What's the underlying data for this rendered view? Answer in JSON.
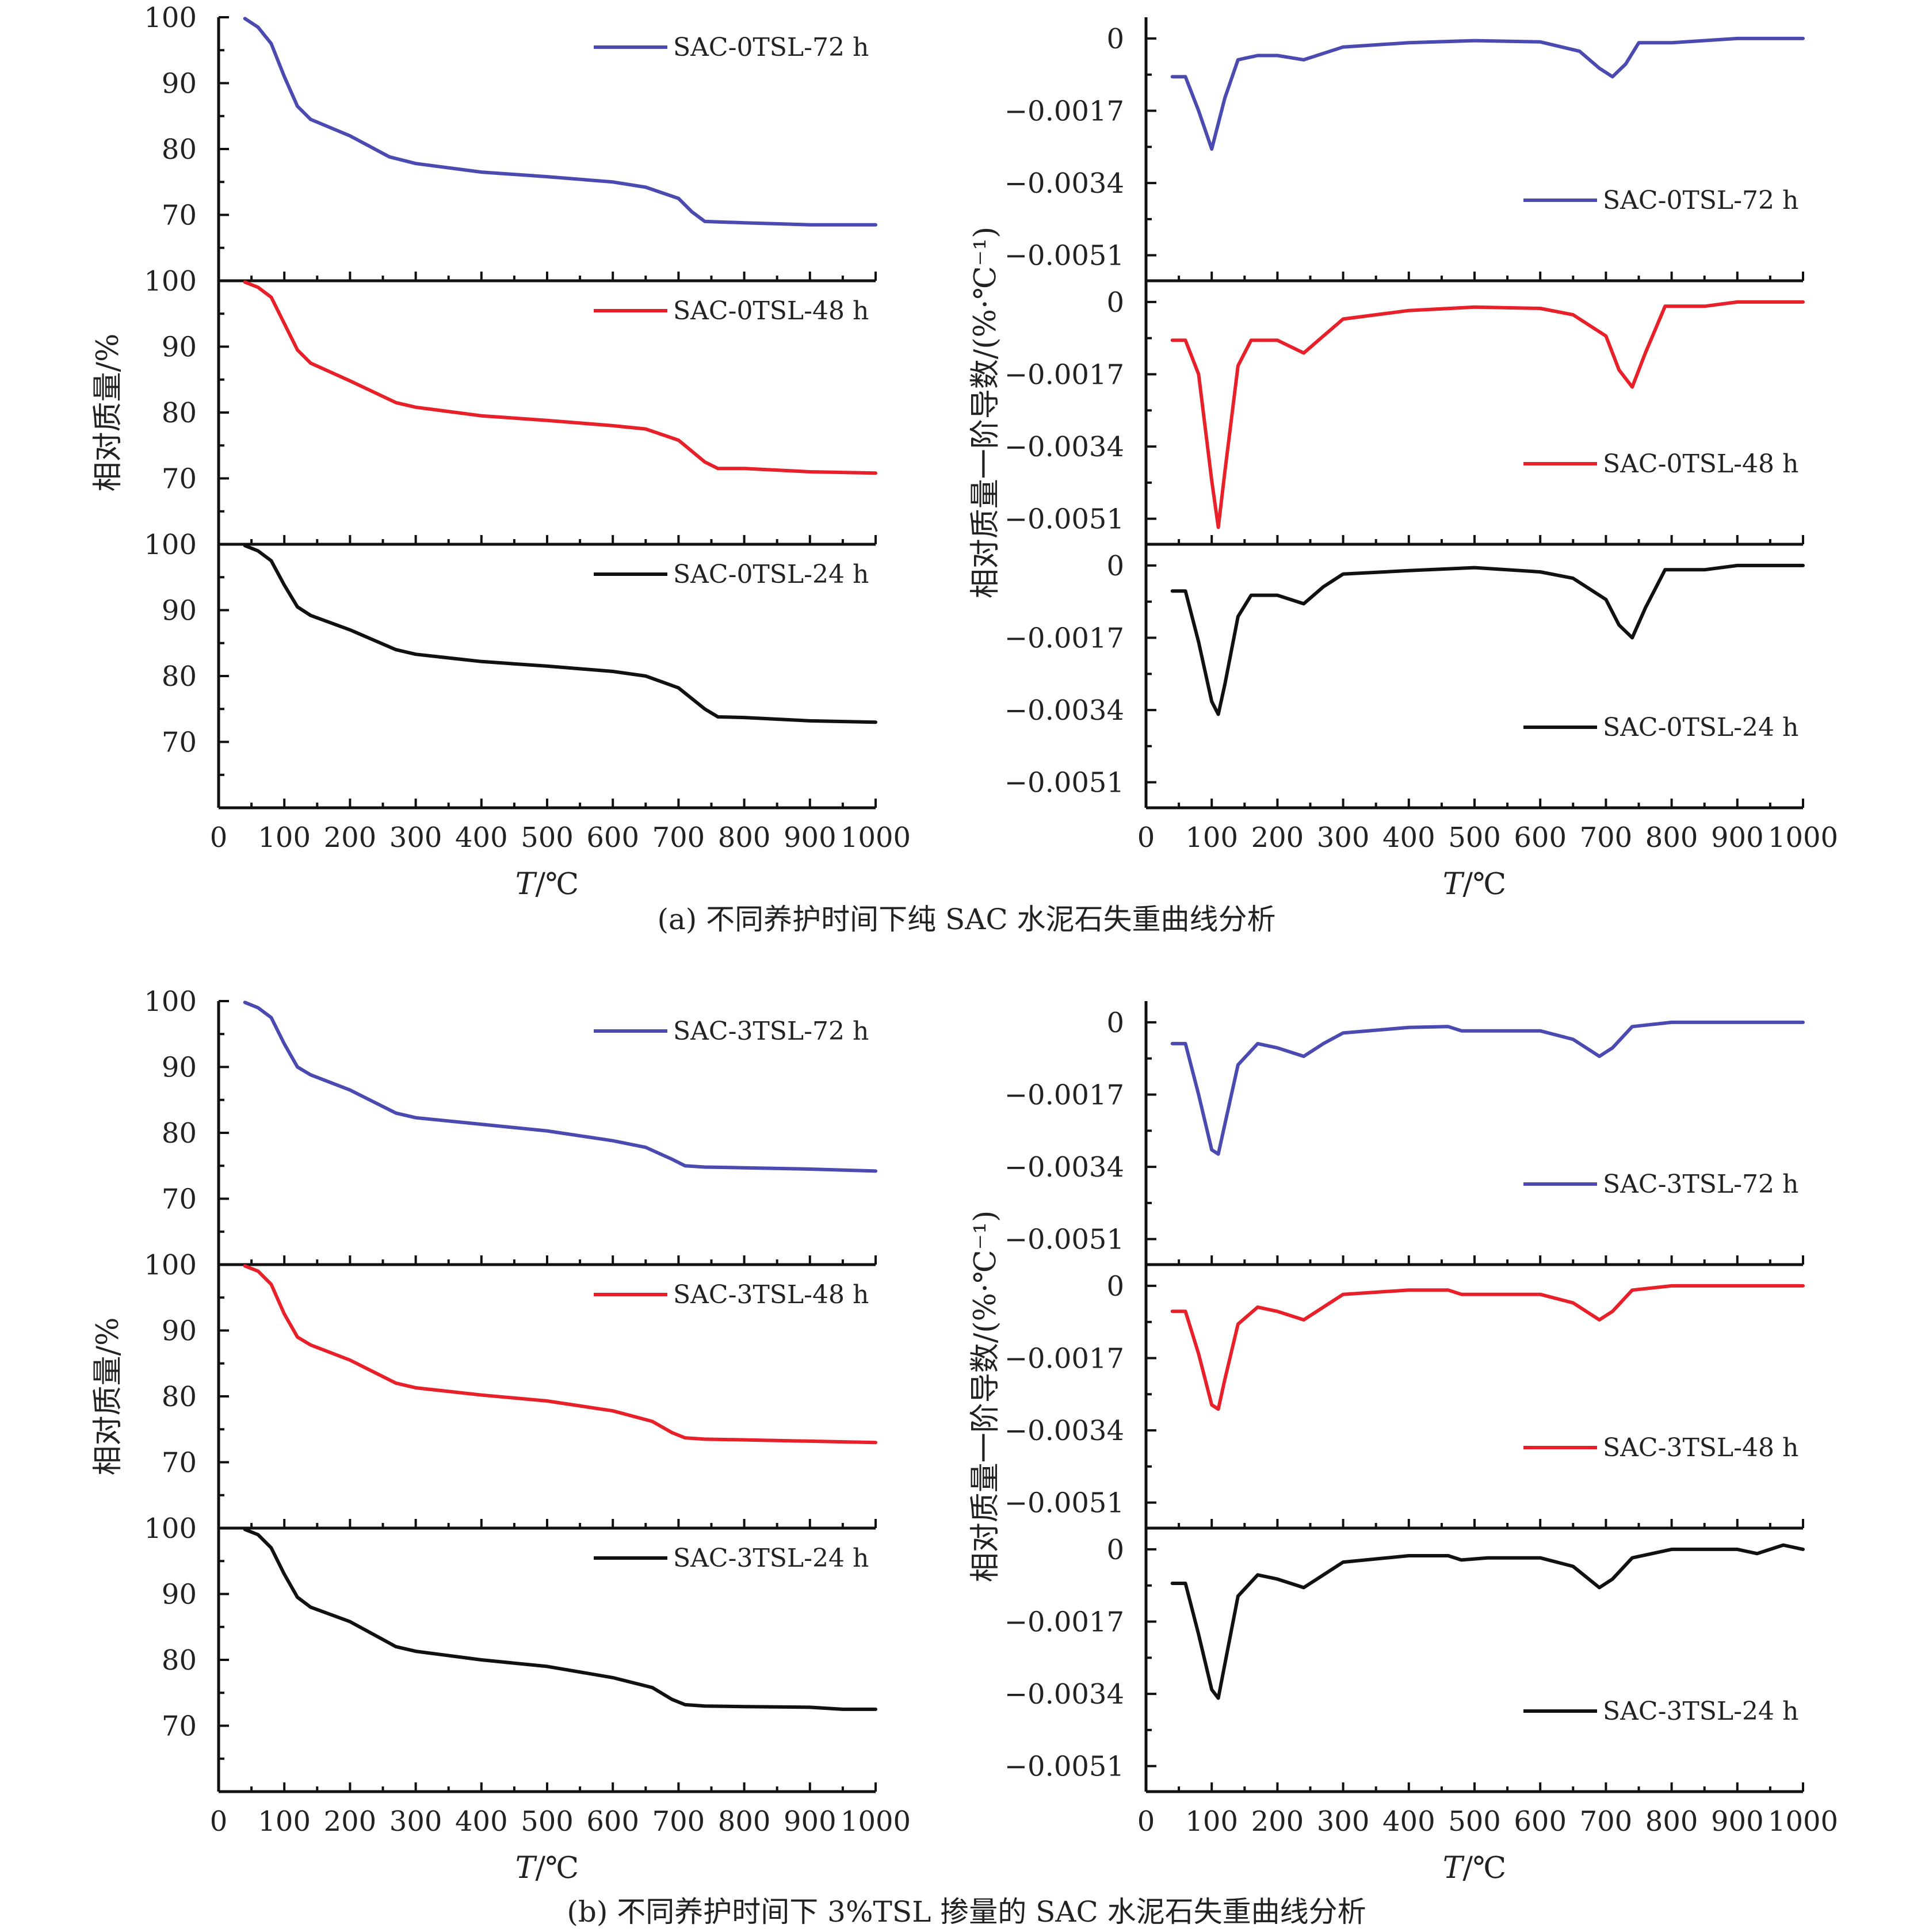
{
  "colors": {
    "blue": "#4a4ab0",
    "red": "#e8202a",
    "black": "#111111"
  },
  "figures": [
    {
      "caption": "(a) 不同养护时间下纯 SAC 水泥石失重曲线分析",
      "tga": {
        "ylabel": "相对质量/%",
        "xlabel_italic": "T",
        "xlabel_rest": "/℃",
        "panels": [
          {
            "legend": "SAC-0TSL-72 h",
            "color": "blue"
          },
          {
            "legend": "SAC-0TSL-48 h",
            "color": "red"
          },
          {
            "legend": "SAC-0TSL-24 h",
            "color": "black"
          }
        ]
      },
      "dtg": {
        "ylabel": "相对质量一阶导数/(%·℃⁻¹)",
        "xlabel_italic": "T",
        "xlabel_rest": "/℃",
        "panels": [
          {
            "legend": "SAC-0TSL-72 h",
            "color": "blue"
          },
          {
            "legend": "SAC-0TSL-48 h",
            "color": "red"
          },
          {
            "legend": "SAC-0TSL-24 h",
            "color": "black"
          }
        ]
      }
    },
    {
      "caption": "(b) 不同养护时间下 3%TSL 掺量的 SAC 水泥石失重曲线分析",
      "tga": {
        "ylabel": "相对质量/%",
        "xlabel_italic": "T",
        "xlabel_rest": "/℃",
        "panels": [
          {
            "legend": "SAC-3TSL-72 h",
            "color": "blue"
          },
          {
            "legend": "SAC-3TSL-48 h",
            "color": "red"
          },
          {
            "legend": "SAC-3TSL-24 h",
            "color": "black"
          }
        ]
      },
      "dtg": {
        "ylabel": "相对质量一阶导数/(%·℃⁻¹)",
        "xlabel_italic": "T",
        "xlabel_rest": "/℃",
        "panels": [
          {
            "legend": "SAC-3TSL-72 h",
            "color": "blue"
          },
          {
            "legend": "SAC-3TSL-48 h",
            "color": "red"
          },
          {
            "legend": "SAC-3TSL-24 h",
            "color": "black"
          }
        ]
      }
    }
  ],
  "chart_data": [
    {
      "type": "line",
      "figure": "a",
      "side": "TGA",
      "xlim": [
        0,
        1000
      ],
      "ylim": [
        60,
        100
      ],
      "xticks": [
        0,
        100,
        200,
        300,
        400,
        500,
        600,
        700,
        800,
        900,
        1000
      ],
      "yticks": [
        70,
        80,
        90,
        100
      ],
      "series": [
        {
          "name": "SAC-0TSL-72 h",
          "color": "blue",
          "x": [
            40,
            60,
            80,
            100,
            120,
            140,
            200,
            260,
            300,
            400,
            500,
            600,
            650,
            700,
            720,
            740,
            800,
            900,
            1000
          ],
          "y": [
            99.8,
            98.5,
            96.0,
            91.0,
            86.5,
            84.5,
            82.0,
            78.8,
            77.8,
            76.5,
            75.8,
            75.0,
            74.2,
            72.5,
            70.5,
            69.0,
            68.8,
            68.5,
            68.5
          ]
        },
        {
          "name": "SAC-0TSL-48 h",
          "color": "red",
          "x": [
            40,
            60,
            80,
            100,
            120,
            140,
            200,
            270,
            300,
            400,
            500,
            600,
            650,
            700,
            740,
            760,
            800,
            900,
            1000
          ],
          "y": [
            99.8,
            99.0,
            97.5,
            93.5,
            89.5,
            87.5,
            84.8,
            81.5,
            80.8,
            79.5,
            78.8,
            78.0,
            77.5,
            75.8,
            72.5,
            71.5,
            71.5,
            71.0,
            70.8
          ]
        },
        {
          "name": "SAC-0TSL-24 h",
          "color": "black",
          "x": [
            40,
            60,
            80,
            100,
            120,
            140,
            200,
            270,
            300,
            400,
            500,
            600,
            650,
            700,
            740,
            760,
            800,
            900,
            1000
          ],
          "y": [
            99.8,
            99.0,
            97.5,
            93.8,
            90.5,
            89.2,
            87.0,
            84.0,
            83.3,
            82.2,
            81.5,
            80.7,
            80.0,
            78.2,
            75.0,
            73.8,
            73.7,
            73.2,
            73.0
          ]
        }
      ]
    },
    {
      "type": "line",
      "figure": "a",
      "side": "DTG",
      "xlim": [
        0,
        1000
      ],
      "ylim": [
        -0.0057,
        0.0005
      ],
      "xticks": [
        0,
        100,
        200,
        300,
        400,
        500,
        600,
        700,
        800,
        900,
        1000
      ],
      "yticks": [
        0,
        -0.0017,
        -0.0034,
        -0.0051
      ],
      "ytick_labels": [
        "0",
        "−0.0017",
        "−0.0034",
        "−0.0051"
      ],
      "series": [
        {
          "name": "SAC-0TSL-72 h",
          "color": "blue",
          "x": [
            40,
            60,
            80,
            100,
            120,
            140,
            170,
            200,
            240,
            270,
            300,
            400,
            500,
            600,
            660,
            690,
            710,
            730,
            750,
            800,
            900,
            1000
          ],
          "y": [
            -0.0009,
            -0.0009,
            -0.0017,
            -0.0026,
            -0.0014,
            -0.0005,
            -0.0004,
            -0.0004,
            -0.0005,
            -0.00035,
            -0.0002,
            -0.0001,
            -5e-05,
            -8e-05,
            -0.0003,
            -0.0007,
            -0.0009,
            -0.0006,
            -0.0001,
            -0.0001,
            0.0,
            0.0
          ]
        },
        {
          "name": "SAC-0TSL-48 h",
          "color": "red",
          "x": [
            40,
            60,
            80,
            100,
            110,
            120,
            140,
            160,
            200,
            240,
            270,
            300,
            400,
            500,
            600,
            650,
            700,
            720,
            740,
            760,
            790,
            850,
            900,
            1000
          ],
          "y": [
            -0.0009,
            -0.0009,
            -0.0017,
            -0.0042,
            -0.0053,
            -0.004,
            -0.0015,
            -0.0009,
            -0.0009,
            -0.0012,
            -0.0008,
            -0.0004,
            -0.0002,
            -0.00012,
            -0.00015,
            -0.0003,
            -0.0008,
            -0.0016,
            -0.002,
            -0.0012,
            -0.0001,
            -0.0001,
            0.0,
            0.0
          ]
        },
        {
          "name": "SAC-0TSL-24 h",
          "color": "black",
          "x": [
            40,
            60,
            80,
            100,
            110,
            120,
            140,
            160,
            200,
            240,
            270,
            300,
            400,
            500,
            600,
            650,
            700,
            720,
            740,
            760,
            790,
            850,
            900,
            1000
          ],
          "y": [
            -0.0006,
            -0.0006,
            -0.0018,
            -0.0032,
            -0.0035,
            -0.0028,
            -0.0012,
            -0.0007,
            -0.0007,
            -0.0009,
            -0.0005,
            -0.0002,
            -0.00012,
            -5e-05,
            -0.00015,
            -0.0003,
            -0.0008,
            -0.0014,
            -0.0017,
            -0.001,
            -0.0001,
            -0.0001,
            0.0,
            0.0
          ]
        }
      ]
    },
    {
      "type": "line",
      "figure": "b",
      "side": "TGA",
      "xlim": [
        0,
        1000
      ],
      "ylim": [
        60,
        100
      ],
      "xticks": [
        0,
        100,
        200,
        300,
        400,
        500,
        600,
        700,
        800,
        900,
        1000
      ],
      "yticks": [
        70,
        80,
        90,
        100
      ],
      "series": [
        {
          "name": "SAC-3TSL-72 h",
          "color": "blue",
          "x": [
            40,
            60,
            80,
            100,
            120,
            140,
            200,
            270,
            300,
            400,
            500,
            600,
            650,
            690,
            710,
            740,
            800,
            900,
            1000
          ],
          "y": [
            99.8,
            99.0,
            97.5,
            93.5,
            90.0,
            88.8,
            86.5,
            83.0,
            82.3,
            81.3,
            80.3,
            78.8,
            77.8,
            76.0,
            75.0,
            74.8,
            74.7,
            74.5,
            74.2
          ]
        },
        {
          "name": "SAC-3TSL-48 h",
          "color": "red",
          "x": [
            40,
            60,
            80,
            100,
            120,
            140,
            200,
            270,
            300,
            400,
            500,
            600,
            660,
            690,
            710,
            740,
            800,
            900,
            1000
          ],
          "y": [
            99.8,
            99.0,
            97.0,
            92.5,
            89.0,
            87.8,
            85.5,
            82.0,
            81.3,
            80.2,
            79.3,
            77.8,
            76.2,
            74.5,
            73.7,
            73.5,
            73.4,
            73.2,
            73.0
          ]
        },
        {
          "name": "SAC-3TSL-24 h",
          "color": "black",
          "x": [
            40,
            60,
            80,
            100,
            120,
            140,
            200,
            270,
            300,
            400,
            500,
            600,
            660,
            690,
            710,
            740,
            800,
            900,
            950,
            1000
          ],
          "y": [
            99.8,
            99.0,
            97.0,
            93.0,
            89.5,
            88.0,
            85.8,
            82.0,
            81.3,
            80.0,
            79.0,
            77.3,
            75.8,
            74.0,
            73.2,
            73.0,
            72.9,
            72.8,
            72.5,
            72.5
          ]
        }
      ]
    },
    {
      "type": "line",
      "figure": "b",
      "side": "DTG",
      "xlim": [
        0,
        1000
      ],
      "ylim": [
        -0.0057,
        0.0005
      ],
      "xticks": [
        0,
        100,
        200,
        300,
        400,
        500,
        600,
        700,
        800,
        900,
        1000
      ],
      "yticks": [
        0,
        -0.0017,
        -0.0034,
        -0.0051
      ],
      "ytick_labels": [
        "0",
        "−0.0017",
        "−0.0034",
        "−0.0051"
      ],
      "series": [
        {
          "name": "SAC-3TSL-72 h",
          "color": "blue",
          "x": [
            40,
            60,
            80,
            100,
            110,
            120,
            140,
            170,
            200,
            240,
            270,
            300,
            400,
            460,
            480,
            520,
            560,
            600,
            650,
            690,
            710,
            740,
            800,
            900,
            1000
          ],
          "y": [
            -0.0005,
            -0.0005,
            -0.0017,
            -0.003,
            -0.0031,
            -0.0024,
            -0.001,
            -0.0005,
            -0.0006,
            -0.0008,
            -0.0005,
            -0.00025,
            -0.00012,
            -0.0001,
            -0.0002,
            -0.0002,
            -0.0002,
            -0.0002,
            -0.0004,
            -0.0008,
            -0.0006,
            -0.0001,
            0.0,
            0.0,
            0.0
          ]
        },
        {
          "name": "SAC-3TSL-48 h",
          "color": "red",
          "x": [
            40,
            60,
            80,
            100,
            110,
            120,
            140,
            170,
            200,
            240,
            270,
            300,
            400,
            460,
            480,
            520,
            600,
            650,
            690,
            710,
            740,
            800,
            900,
            1000
          ],
          "y": [
            -0.0006,
            -0.0006,
            -0.0016,
            -0.0028,
            -0.0029,
            -0.0022,
            -0.0009,
            -0.0005,
            -0.0006,
            -0.0008,
            -0.0005,
            -0.0002,
            -0.0001,
            -0.0001,
            -0.0002,
            -0.0002,
            -0.0002,
            -0.0004,
            -0.0008,
            -0.0006,
            -0.0001,
            0.0,
            0.0,
            0.0
          ]
        },
        {
          "name": "SAC-3TSL-24 h",
          "color": "black",
          "x": [
            40,
            60,
            80,
            100,
            110,
            120,
            140,
            170,
            200,
            240,
            270,
            300,
            400,
            460,
            480,
            520,
            600,
            650,
            690,
            710,
            740,
            800,
            900,
            930,
            950,
            970,
            1000
          ],
          "y": [
            -0.0008,
            -0.0008,
            -0.002,
            -0.0033,
            -0.0035,
            -0.0027,
            -0.0011,
            -0.0006,
            -0.0007,
            -0.0009,
            -0.0006,
            -0.0003,
            -0.00015,
            -0.00015,
            -0.00025,
            -0.0002,
            -0.0002,
            -0.0004,
            -0.0009,
            -0.0007,
            -0.0002,
            0.0,
            0.0,
            -0.0001,
            0.0,
            0.0001,
            0.0
          ]
        }
      ]
    }
  ]
}
